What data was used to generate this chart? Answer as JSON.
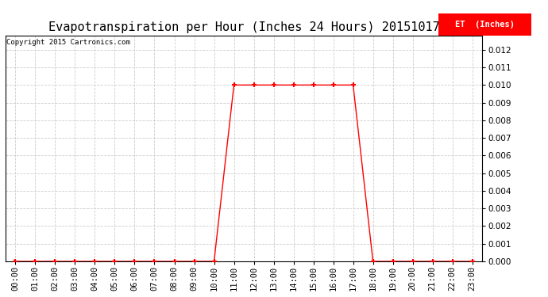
{
  "title": "Evapotranspiration per Hour (Inches 24 Hours) 20151017",
  "copyright": "Copyright 2015 Cartronics.com",
  "legend_label": "ET  (Inches)",
  "line_color": "#ff0000",
  "background_color": "#ffffff",
  "grid_color": "#cccccc",
  "ylim": [
    0.0,
    0.0128
  ],
  "yticks": [
    0.0,
    0.001,
    0.002,
    0.003,
    0.004,
    0.005,
    0.006,
    0.007,
    0.008,
    0.009,
    0.01,
    0.011,
    0.012
  ],
  "hours": [
    "00:00",
    "01:00",
    "02:00",
    "03:00",
    "04:00",
    "05:00",
    "06:00",
    "07:00",
    "08:00",
    "09:00",
    "10:00",
    "11:00",
    "12:00",
    "13:00",
    "14:00",
    "15:00",
    "16:00",
    "17:00",
    "18:00",
    "19:00",
    "20:00",
    "21:00",
    "22:00",
    "23:00"
  ],
  "et_values": [
    0.0,
    0.0,
    0.0,
    0.0,
    0.0,
    0.0,
    0.0,
    0.0,
    0.0,
    0.0,
    0.0,
    0.01,
    0.01,
    0.01,
    0.01,
    0.01,
    0.01,
    0.01,
    0.0,
    0.0,
    0.0,
    0.0,
    0.0,
    0.0
  ],
  "figwidth": 6.9,
  "figheight": 3.75,
  "dpi": 100,
  "title_fontsize": 11,
  "copyright_fontsize": 6.5,
  "tick_fontsize": 7.5,
  "legend_fontsize": 7.5
}
